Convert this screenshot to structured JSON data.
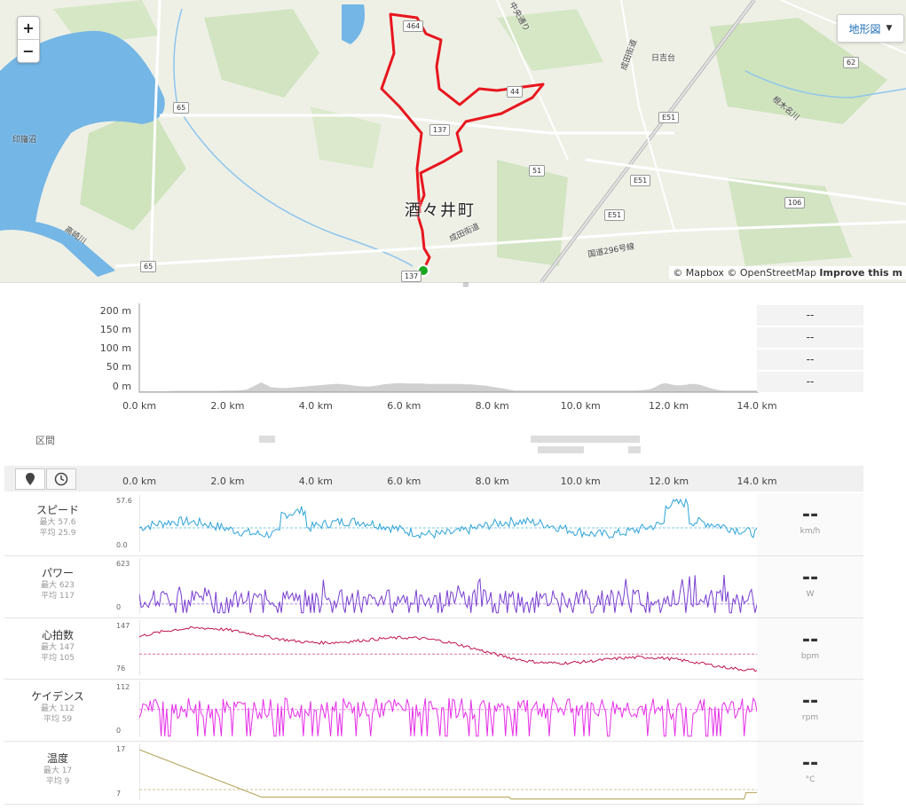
{
  "map": {
    "zoom_in": "+",
    "zoom_out": "−",
    "map_type": "地形図",
    "town": "酒々井町",
    "attribution": {
      "mapbox": "© Mapbox",
      "osm": "© OpenStreetMap",
      "improve": "Improve this m"
    },
    "labels": {
      "lake": "印旛沼",
      "river": "高崎川",
      "chuo": "中央通り",
      "narita1": "成田街道",
      "narita2": "成田街道",
      "hiyoshi": "日吉台",
      "route296": "国道296号線",
      "negi": "根木名川"
    },
    "shields": {
      "s65a": "65",
      "s65b": "65",
      "s137a": "137",
      "s137b": "137",
      "s51": "51",
      "s62": "62",
      "s106": "106",
      "e51a": "E51",
      "e51b": "E51",
      "e51c": "E51",
      "s464": "464",
      "s44": "44"
    },
    "colors": {
      "route": "#e8161e",
      "water": "#74b6e6",
      "start": "#18a81f"
    }
  },
  "elevation": {
    "y_labels": [
      "200 m",
      "150 m",
      "100 m",
      "50 m",
      "0 m"
    ],
    "x_labels": [
      "0.0 km",
      "2.0 km",
      "4.0 km",
      "6.0 km",
      "8.0 km",
      "10.0 km",
      "12.0 km",
      "14.0 km"
    ],
    "stats": [
      "--",
      "--",
      "--",
      "--"
    ],
    "profile_m": [
      2,
      2,
      2,
      2,
      2,
      2,
      2,
      3,
      3,
      3,
      3,
      3,
      3,
      3,
      3,
      3,
      3,
      4,
      4,
      4,
      4,
      5,
      6,
      12,
      18,
      24,
      18,
      12,
      11,
      10,
      10,
      11,
      12,
      13,
      14,
      15,
      16,
      17,
      18,
      19,
      20,
      20,
      19,
      18,
      16,
      15,
      14,
      14,
      15,
      17,
      19,
      20,
      21,
      22,
      22,
      21,
      21,
      21,
      21,
      20,
      20,
      20,
      20,
      20,
      20,
      20,
      20,
      19,
      19,
      18,
      17,
      16,
      14,
      12,
      10,
      8,
      6,
      4,
      4,
      4,
      4,
      4,
      4,
      4,
      4,
      4,
      4,
      4,
      4,
      4,
      4,
      4,
      4,
      4,
      4,
      4,
      4,
      4,
      4,
      4,
      4,
      4,
      4,
      5,
      6,
      8,
      14,
      20,
      22,
      19,
      17,
      17,
      18,
      20,
      20,
      18,
      14,
      10,
      7,
      5,
      4,
      4,
      4,
      4,
      4,
      4,
      4,
      4
    ],
    "section_label": "区間"
  },
  "analysis": {
    "x_labels": [
      "0.0 km",
      "2.0 km",
      "4.0 km",
      "6.0 km",
      "8.0 km",
      "10.0 km",
      "12.0 km",
      "14.0 km"
    ],
    "rows": [
      {
        "name": "スピード",
        "max": "最大 57.6",
        "avg": "平均 25.9",
        "value": "--",
        "unit": "km/h",
        "ymax": "57.6",
        "ymin": "0.0",
        "color": "#2ea3d8",
        "avg_frac": 0.45
      },
      {
        "name": "パワー",
        "max": "最大 623",
        "avg": "平均 117",
        "value": "--",
        "unit": "W",
        "ymax": "623",
        "ymin": "0",
        "color": "#7a3fd0",
        "avg_frac": 0.19
      },
      {
        "name": "心拍数",
        "max": "最大 147",
        "avg": "平均 105",
        "value": "--",
        "unit": "bpm",
        "ymax": "147",
        "ymin": "76",
        "color": "#c0134a",
        "avg_frac": 0.41
      },
      {
        "name": "ケイデンス",
        "max": "最大 112",
        "avg": "平均 59",
        "value": "--",
        "unit": "rpm",
        "ymax": "112",
        "ymin": "0",
        "color": "#e52fe8",
        "avg_frac": 0.53
      },
      {
        "name": "温度",
        "max": "最大 17",
        "avg": "平均 9",
        "value": "--",
        "unit": "°C",
        "ymax": "17",
        "ymin": "7",
        "color": "#b0a050",
        "avg_frac": 0.2
      }
    ]
  }
}
